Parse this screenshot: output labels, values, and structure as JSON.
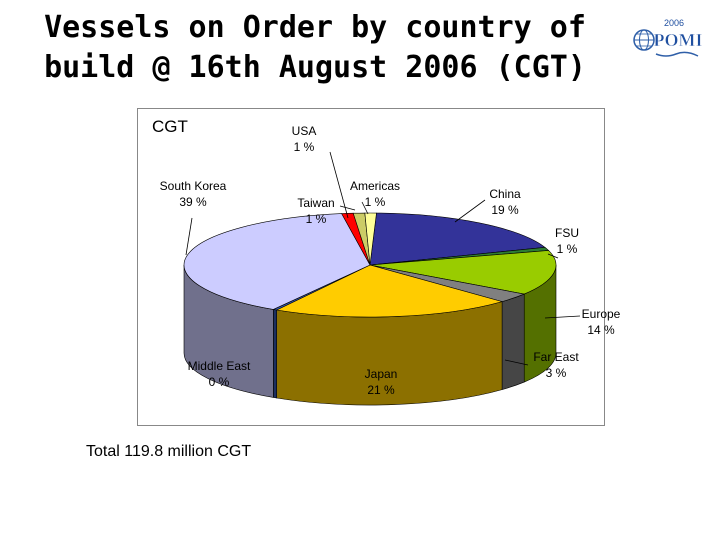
{
  "title": {
    "line1": "Vessels on Order by country of",
    "line2": "build @ 16th August 2006 (CGT)"
  },
  "logo": {
    "year": "2006",
    "text": "POMI"
  },
  "total_text": "Total 119.8 million CGT",
  "chart_data": {
    "type": "pie",
    "title": "CGT",
    "three_d": true,
    "slices": [
      {
        "name": "China",
        "value": 19,
        "label": "19 %",
        "color": "#333399"
      },
      {
        "name": "FSU",
        "value": 1,
        "label": "1 %",
        "color": "#2e7d32"
      },
      {
        "name": "Europe",
        "value": 14,
        "label": "14 %",
        "color": "#99cc00"
      },
      {
        "name": "Far East",
        "value": 3,
        "label": "3 %",
        "color": "#808080"
      },
      {
        "name": "Japan",
        "value": 21,
        "label": "21 %",
        "color": "#ffcc00"
      },
      {
        "name": "Middle East",
        "value": 0,
        "label": "0 %",
        "color": "#3355aa"
      },
      {
        "name": "South Korea",
        "value": 39,
        "label": "39 %",
        "color": "#ccccff"
      },
      {
        "name": "Taiwan",
        "value": 1,
        "label": "1 %",
        "color": "#ff0000"
      },
      {
        "name": "USA",
        "value": 1,
        "label": "1 %",
        "color": "#cccc66"
      },
      {
        "name": "Americas",
        "value": 1,
        "label": "1 %",
        "color": "#ffff99"
      }
    ]
  }
}
